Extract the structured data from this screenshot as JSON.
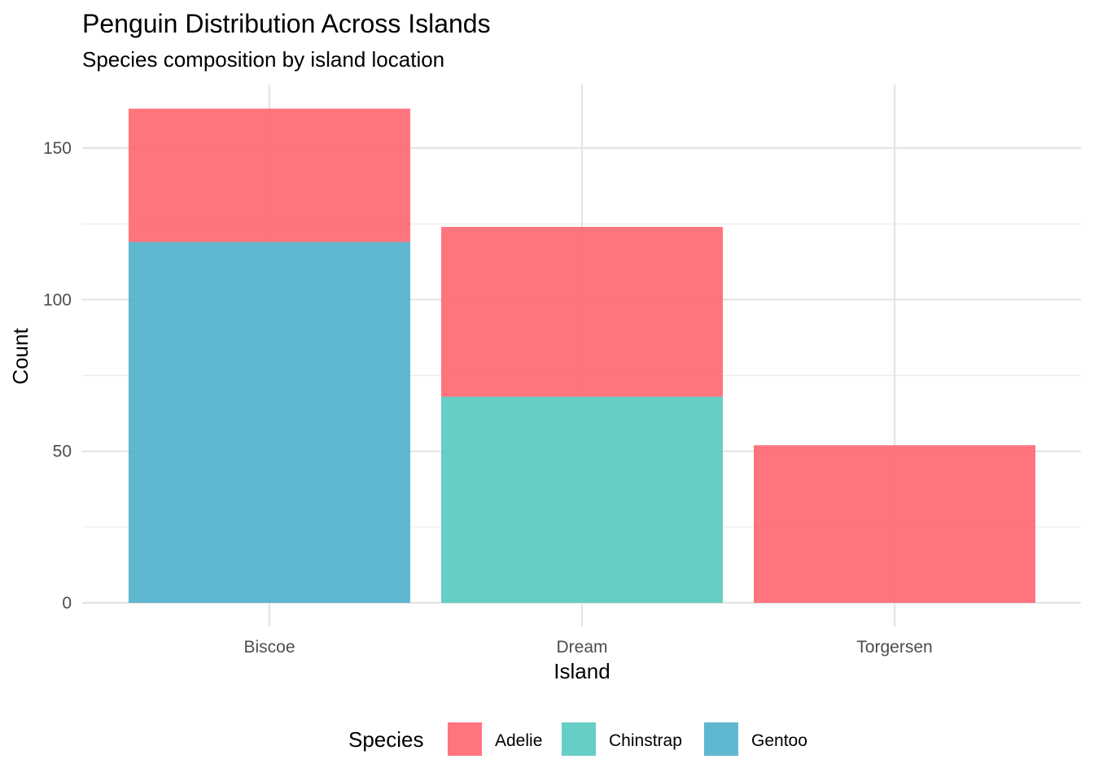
{
  "chart_data": {
    "type": "bar",
    "stacked": true,
    "title": "Penguin Distribution Across Islands",
    "subtitle": "Species composition by island location",
    "xlabel": "Island",
    "ylabel": "Count",
    "categories": [
      "Biscoe",
      "Dream",
      "Torgersen"
    ],
    "ylim": [
      0,
      170
    ],
    "yticks": [
      0,
      50,
      100,
      150
    ],
    "grid": true,
    "legend": {
      "title": "Species",
      "position": "bottom"
    },
    "series": [
      {
        "name": "Gentoo",
        "color": "#4EAFCB",
        "values": [
          119,
          0,
          0
        ]
      },
      {
        "name": "Chinstrap",
        "color": "#54C9BF",
        "values": [
          0,
          68,
          0
        ]
      },
      {
        "name": "Adelie",
        "color": "#FF6670",
        "values": [
          44,
          56,
          52
        ]
      }
    ],
    "legend_order": [
      "Adelie",
      "Chinstrap",
      "Gentoo"
    ]
  }
}
